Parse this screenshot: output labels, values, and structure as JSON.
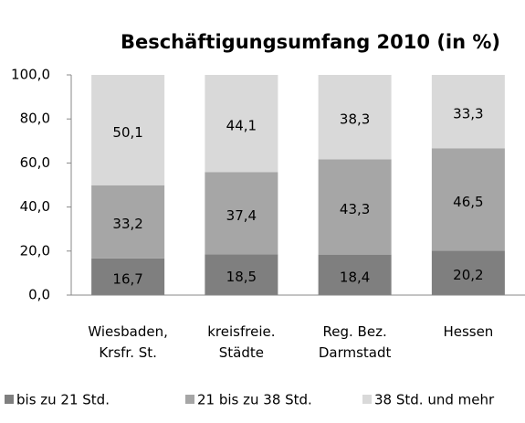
{
  "chart_data": {
    "type": "stacked_bar",
    "title": "Beschäftigungsumfang 2010 (in %)",
    "categories": [
      "Wiesbaden,\nKrsfr. St.",
      "kreisfreie.\nStädte",
      "Reg. Bez.\nDarmstadt",
      "Hessen"
    ],
    "series": [
      {
        "name": "bis zu 21 Std.",
        "color": "#7f7f7f",
        "values": [
          16.7,
          18.5,
          18.4,
          20.2
        ],
        "value_labels": [
          "16,7",
          "18,5",
          "18,4",
          "20,2"
        ]
      },
      {
        "name": "21 bis zu 38 Std.",
        "color": "#a6a6a6",
        "values": [
          33.2,
          37.4,
          43.3,
          46.5
        ],
        "value_labels": [
          "33,2",
          "37,4",
          "43,3",
          "46,5"
        ]
      },
      {
        "name": "38 Std. und mehr",
        "color": "#d9d9d9",
        "values": [
          50.1,
          44.1,
          38.3,
          33.3
        ],
        "value_labels": [
          "50,1",
          "44,1",
          "38,3",
          "33,3"
        ]
      }
    ],
    "ylim": [
      0,
      100
    ],
    "yticks": [
      {
        "value": 0,
        "label": "0,0"
      },
      {
        "value": 20,
        "label": "20,0"
      },
      {
        "value": 40,
        "label": "40,0"
      },
      {
        "value": 60,
        "label": "60,0"
      },
      {
        "value": 80,
        "label": "80,0"
      },
      {
        "value": 100,
        "label": "100,0"
      }
    ],
    "legend": "bottom"
  }
}
